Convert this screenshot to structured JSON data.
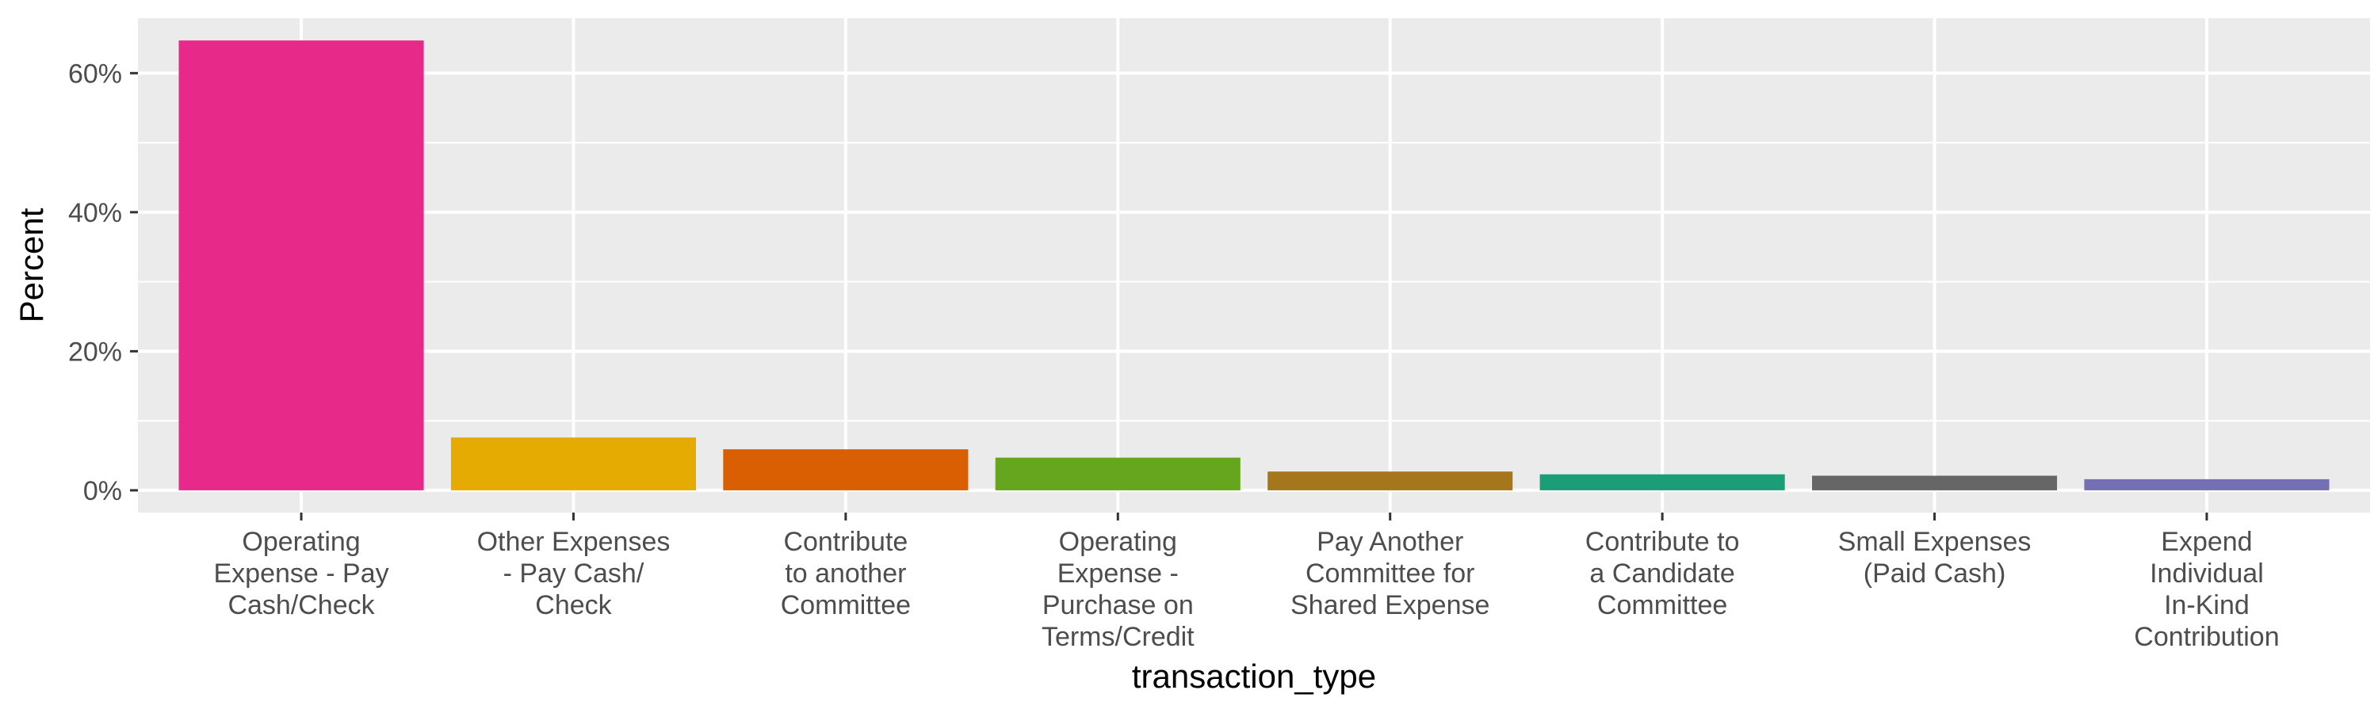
{
  "chart_data": {
    "type": "bar",
    "xlabel": "transaction_type",
    "ylabel": "Percent",
    "categories": [
      [
        "Operating",
        "Expense - Pay",
        "Cash/Check"
      ],
      [
        "Other Expenses",
        "- Pay Cash/",
        "Check"
      ],
      [
        "Contribute",
        "to another",
        "Committee"
      ],
      [
        "Operating",
        "Expense -",
        "Purchase on",
        "Terms/Credit"
      ],
      [
        "Pay Another",
        "Committee for",
        "Shared Expense"
      ],
      [
        "Contribute to",
        "a Candidate",
        "Committee"
      ],
      [
        "Small Expenses",
        "(Paid Cash)"
      ],
      [
        "Expend",
        "Individual",
        "In-Kind",
        "Contribution"
      ]
    ],
    "values": [
      64.7,
      7.6,
      5.9,
      4.7,
      2.7,
      2.3,
      2.1,
      1.6
    ],
    "colors": [
      "#E7298A",
      "#E6AB02",
      "#D95F02",
      "#66A61E",
      "#A6761D",
      "#1B9E77",
      "#666666",
      "#7570B3"
    ],
    "ylim": [
      -3.2,
      67.9
    ],
    "yticks": [
      0,
      20,
      40,
      60
    ],
    "ytick_labels": [
      "0%",
      "20%",
      "40%",
      "60%"
    ],
    "grid": true,
    "legend": "none"
  }
}
